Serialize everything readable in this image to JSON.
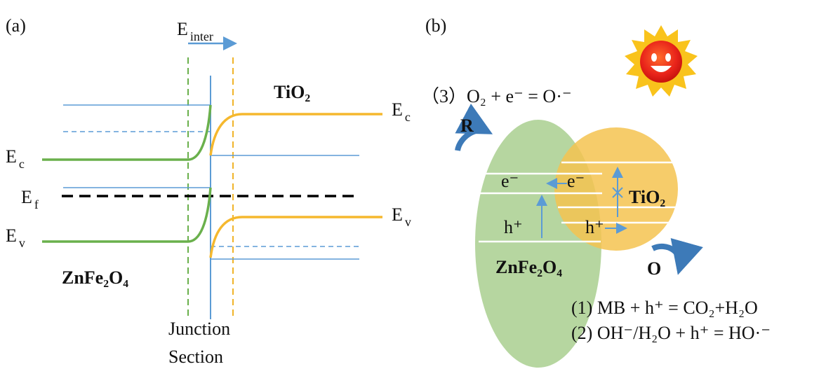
{
  "panel_a": {
    "label": "(a)",
    "field_label": {
      "base": "E",
      "sub": "inter"
    },
    "left_ec": {
      "base": "E",
      "sub": "c"
    },
    "left_ef": {
      "base": "E",
      "sub": "f"
    },
    "left_ev": {
      "base": "E",
      "sub": "v"
    },
    "right_ec": {
      "base": "E",
      "sub": "c"
    },
    "right_ev": {
      "base": "E",
      "sub": "v"
    },
    "material_left": "ZnFe₂O₄",
    "material_right": "TiO₂",
    "junction_line1": "Junction",
    "junction_line2": "Section"
  },
  "panel_b": {
    "label": "(b)",
    "reaction_3": "（3）O₂ + e⁻ = O·⁻",
    "reduction": "R",
    "oxidation": "O",
    "electron_left": "e⁻",
    "electron_right": "e⁻",
    "hole_left": "h⁺",
    "hole_right": "h⁺",
    "material_right": "TiO₂",
    "material_left": "ZnFe₂O₄",
    "reaction_1": "(1) MB + h⁺ = CO₂+H₂O",
    "reaction_2": "(2)  OH⁻/H₂O + h⁺ = HO·⁻"
  }
}
